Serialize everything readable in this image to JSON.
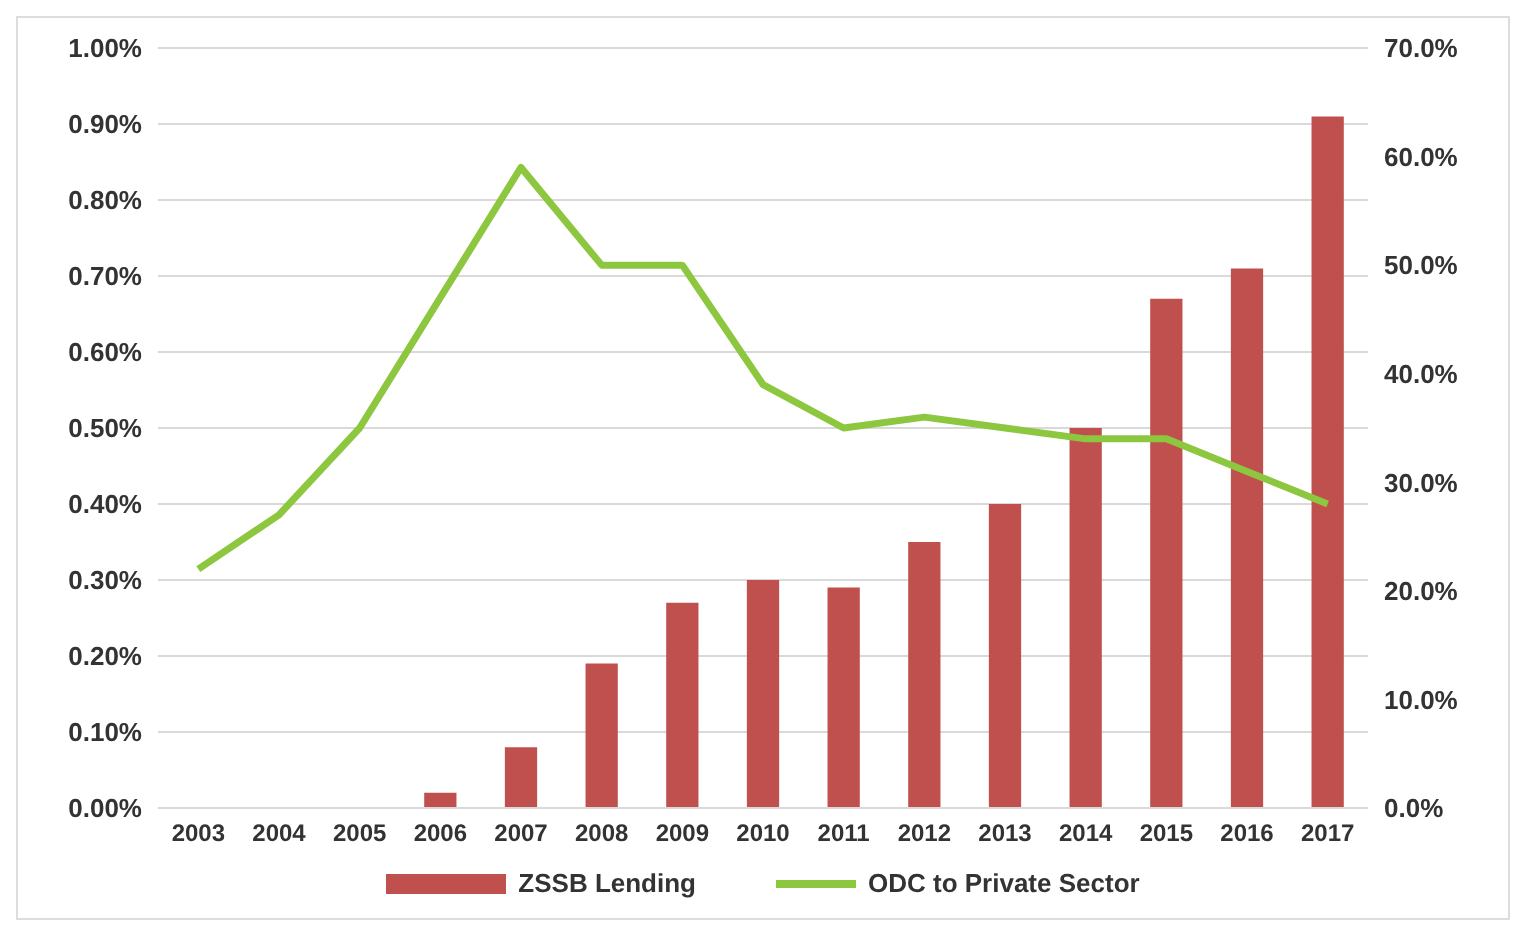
{
  "chart_data": {
    "type": "bar",
    "categories": [
      "2003",
      "2004",
      "2005",
      "2006",
      "2007",
      "2008",
      "2009",
      "2010",
      "2011",
      "2012",
      "2013",
      "2014",
      "2015",
      "2016",
      "2017"
    ],
    "series": [
      {
        "name": "ZSSB Lending",
        "color": "#c0504d",
        "values": [
          0,
          0,
          0,
          0.02,
          0.08,
          0.19,
          0.27,
          0.3,
          0.29,
          0.35,
          0.4,
          0.5,
          0.67,
          0.71,
          0.91
        ]
      },
      {
        "name": "ODC to Private Sector",
        "type": "line",
        "axis": "y2",
        "color": "#8dc63f",
        "values": [
          22,
          27,
          35,
          47,
          59,
          50,
          50,
          39,
          35,
          36,
          35,
          34,
          34,
          31,
          28
        ]
      }
    ],
    "ylim": [
      0,
      1
    ],
    "yticks": [
      {
        "value": 0,
        "label": "0.00%"
      },
      {
        "value": 0.1,
        "label": "0.10%"
      },
      {
        "value": 0.2,
        "label": "0.20%"
      },
      {
        "value": 0.3,
        "label": "0.30%"
      },
      {
        "value": 0.4,
        "label": "0.40%"
      },
      {
        "value": 0.5,
        "label": "0.50%"
      },
      {
        "value": 0.6,
        "label": "0.60%"
      },
      {
        "value": 0.7,
        "label": "0.70%"
      },
      {
        "value": 0.8,
        "label": "0.80%"
      },
      {
        "value": 0.9,
        "label": "0.90%"
      },
      {
        "value": 1,
        "label": "1.00%"
      }
    ],
    "y2lim": [
      0,
      70
    ],
    "y2ticks": [
      {
        "value": 0,
        "label": "0.0%"
      },
      {
        "value": 10,
        "label": "10.0%"
      },
      {
        "value": 20,
        "label": "20.0%"
      },
      {
        "value": 30,
        "label": "30.0%"
      },
      {
        "value": 40,
        "label": "40.0%"
      },
      {
        "value": 50,
        "label": "50.0%"
      },
      {
        "value": 60,
        "label": "60.0%"
      },
      {
        "value": 70,
        "label": "70.0%"
      }
    ],
    "grid": "y",
    "legend": "bottom",
    "marker": "none"
  }
}
